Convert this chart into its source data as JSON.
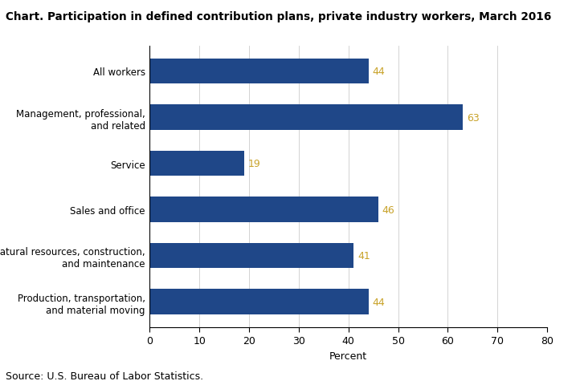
{
  "title": "Chart. Participation in defined contribution plans, private industry workers, March 2016",
  "categories": [
    "Production, transportation,\nand material moving",
    "Natural resources, construction,\nand maintenance",
    "Sales and office",
    "Service",
    "Management, professional,\nand related",
    "All workers"
  ],
  "values": [
    44,
    41,
    46,
    19,
    63,
    44
  ],
  "bar_color": "#1F4788",
  "value_color": "#C8A228",
  "xlabel": "Percent",
  "xlim": [
    0,
    80
  ],
  "xticks": [
    0,
    10,
    20,
    30,
    40,
    50,
    60,
    70,
    80
  ],
  "source": "Source: U.S. Bureau of Labor Statistics.",
  "title_fontsize": 9.8,
  "ylabel_fontsize": 8.5,
  "xlabel_fontsize": 9.0,
  "tick_fontsize": 9.0,
  "source_fontsize": 9.0,
  "value_fontsize": 9.0,
  "bar_height": 0.55
}
